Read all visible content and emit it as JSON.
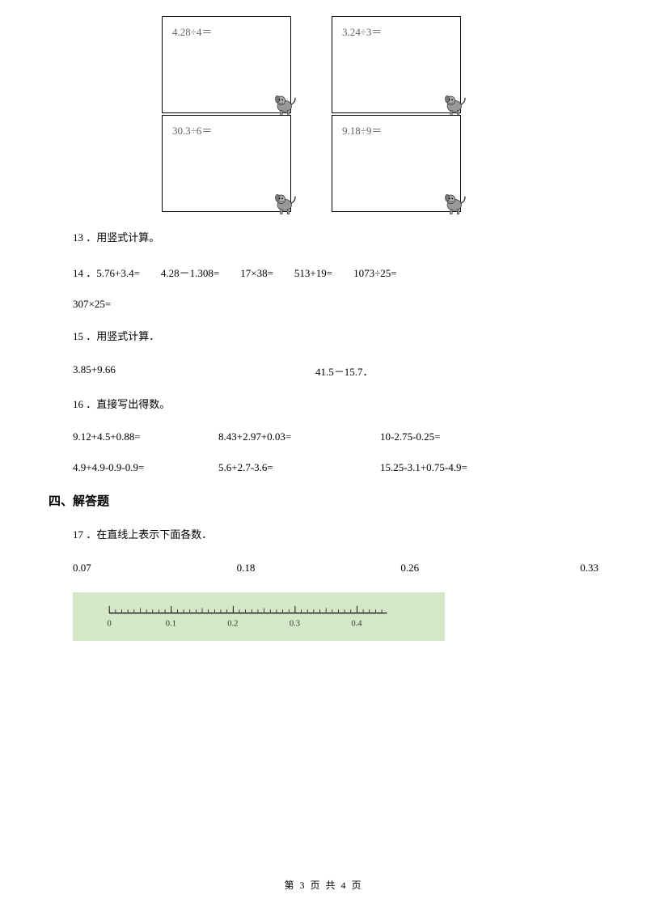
{
  "boxes": {
    "box1": "4.28÷4＝",
    "box2": "3.24÷3＝",
    "box3": "30.3÷6＝",
    "box4": "9.18÷9＝"
  },
  "q13": "13 ．用竖式计算。",
  "q14": {
    "line1": "14 ．5.76+3.4=　　4.28－1.308=　　17×38=　　513+19=　　1073÷25=",
    "line2": "307×25="
  },
  "q15": {
    "title": "15 ．用竖式计算．",
    "expr1": "3.85+9.66",
    "expr2": "41.5－15.7．"
  },
  "q16": {
    "title": "16 ．直接写出得数。",
    "row1": {
      "a": "9.12+4.5+0.88=",
      "b": "8.43+2.97+0.03=",
      "c": "10-2.75-0.25="
    },
    "row2": {
      "a": "4.9+4.9-0.9-0.9=",
      "b": "5.6+2.7-3.6=",
      "c": "15.25-3.1+0.75-4.9="
    }
  },
  "section4": "四、解答题",
  "q17": {
    "title": "17 ．在直线上表示下面各数．",
    "nums": [
      "0.07",
      "0.18",
      "0.26",
      "0.33"
    ],
    "ruler_labels": [
      "0",
      "0.1",
      "0.2",
      "0.3",
      "0.4"
    ],
    "ruler_bg": "#d4e8c8"
  },
  "footer": "第 3 页 共 4 页",
  "colors": {
    "text": "#000000",
    "box_text": "#666666",
    "bg": "#ffffff"
  }
}
